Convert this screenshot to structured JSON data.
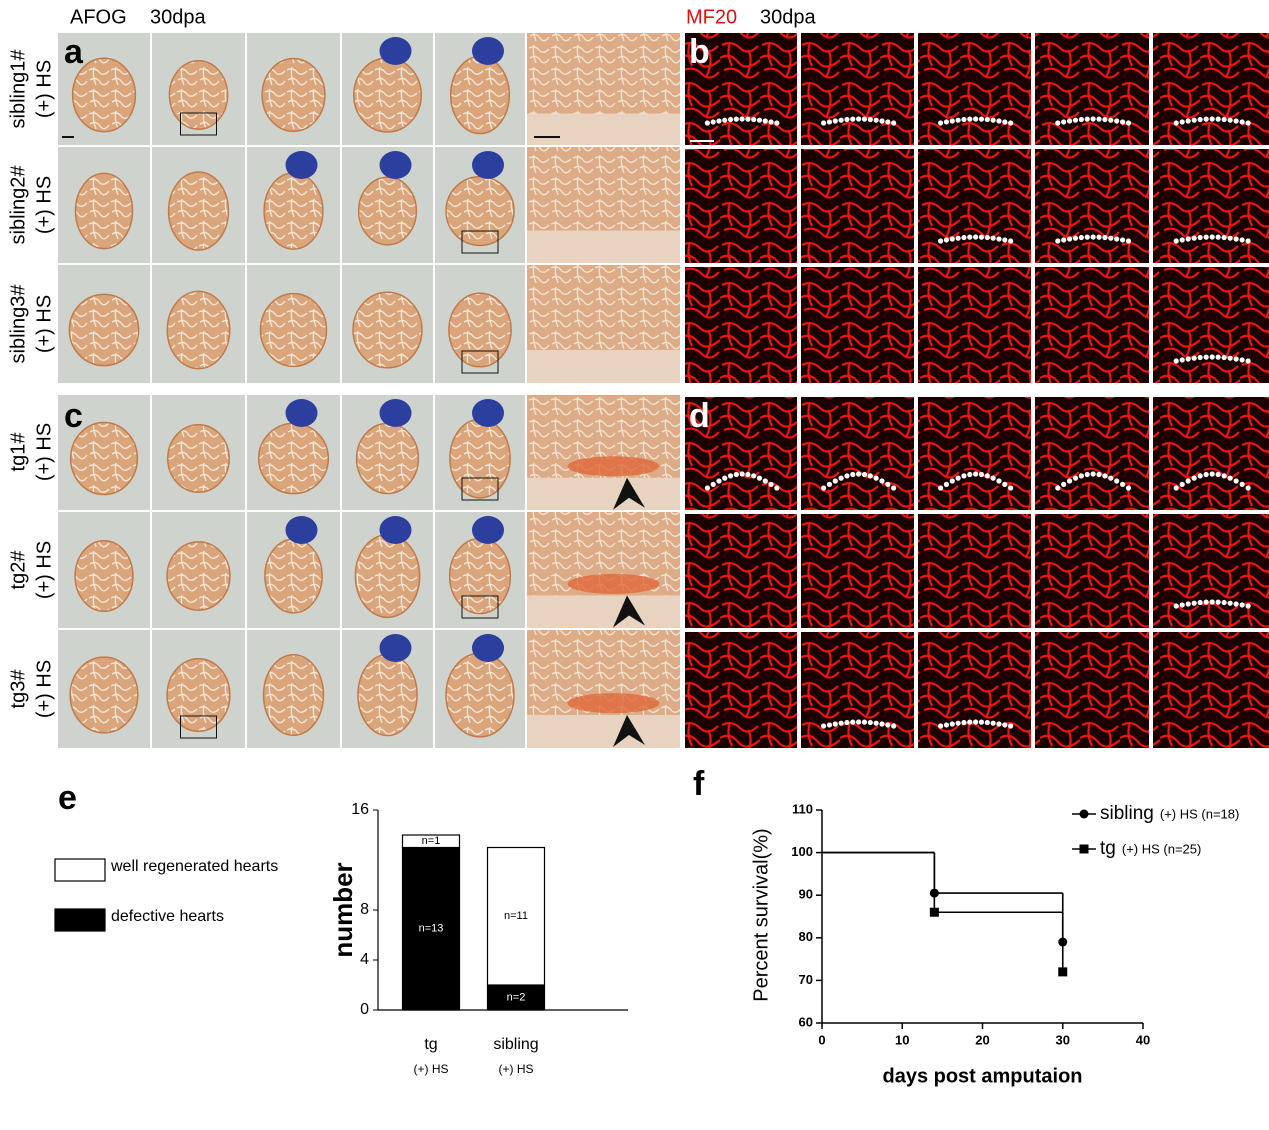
{
  "figure": {
    "afog_header": [
      "AFOG",
      "30dpa"
    ],
    "mf20_header": [
      "MF20",
      "30dpa"
    ],
    "panels": [
      "a",
      "b",
      "c",
      "d",
      "e",
      "f"
    ],
    "row_labels": [
      [
        "sibling1#",
        "(+) HS"
      ],
      [
        "sibling2#",
        "(+) HS"
      ],
      [
        "sibling3#",
        "(+) HS"
      ],
      [
        "tg1#",
        "(+) HS"
      ],
      [
        "tg2#",
        "(+) HS"
      ],
      [
        "tg3#",
        "(+) HS"
      ]
    ]
  },
  "chart_data": [
    {
      "type": "bar",
      "stacked": true,
      "y_label": "number",
      "categories": [
        "tg",
        "sibling"
      ],
      "category_notes": [
        "(+) HS",
        "(+) HS"
      ],
      "ylim": [
        0,
        16
      ],
      "yticks": [
        0,
        4,
        8,
        16
      ],
      "series": [
        {
          "name": "defective hearts",
          "color": "#000000",
          "values": [
            13,
            2
          ],
          "value_labels": [
            "n=13",
            "n=2"
          ]
        },
        {
          "name": "well regenerated hearts",
          "color": "#ffffff",
          "values": [
            1,
            11
          ],
          "value_labels": [
            "n=1",
            "n=11"
          ]
        }
      ]
    },
    {
      "type": "line",
      "step": true,
      "x_label": "days post amputaion",
      "y_label": "Percent survival(%)",
      "x": [
        0,
        14,
        30
      ],
      "xlim": [
        0,
        40
      ],
      "xticks": [
        0,
        10,
        20,
        30,
        40
      ],
      "ylim": [
        60,
        110
      ],
      "yticks": [
        60,
        70,
        80,
        90,
        100,
        110
      ],
      "series": [
        {
          "name": "sibling",
          "legend_note": "(+) HS (n=18)",
          "marker": "circle",
          "color": "#000000",
          "values": [
            100,
            90.5,
            79
          ]
        },
        {
          "name": "tg",
          "legend_note": "(+) HS (n=25)",
          "marker": "square",
          "color": "#000000",
          "values": [
            100,
            86,
            72
          ]
        }
      ]
    }
  ]
}
